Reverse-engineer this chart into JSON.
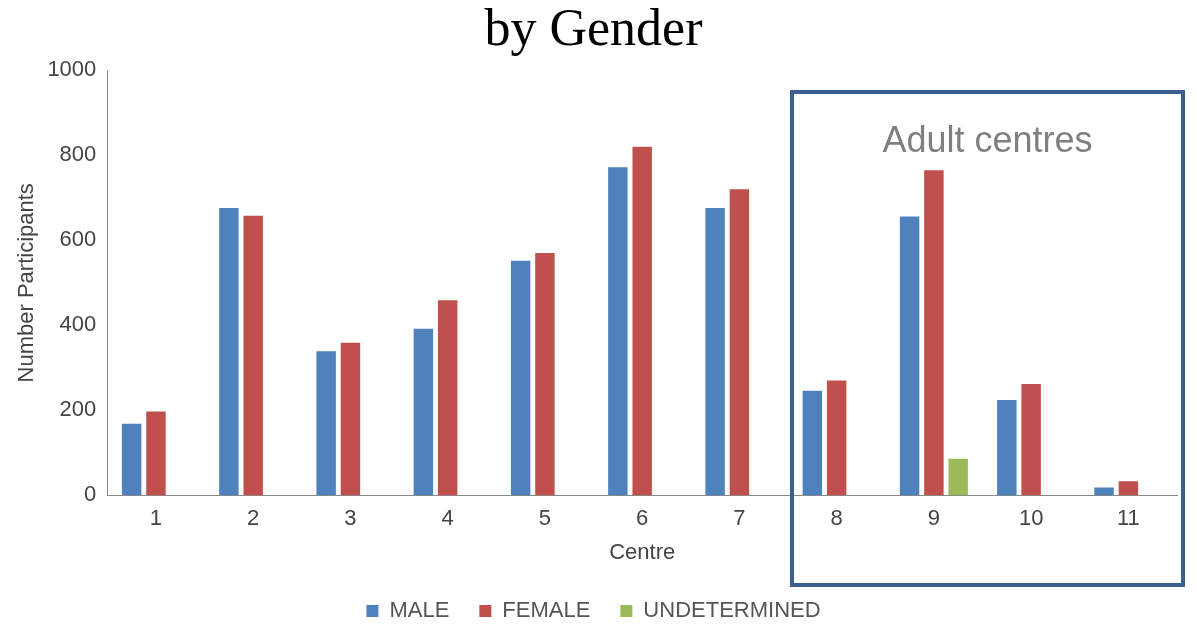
{
  "chart_data": {
    "type": "bar",
    "title": "by Gender",
    "xlabel": "Centre",
    "ylabel": "Number Participants",
    "categories": [
      "1",
      "2",
      "3",
      "4",
      "5",
      "6",
      "7",
      "8",
      "9",
      "10",
      "11"
    ],
    "series": [
      {
        "name": "MALE",
        "color": "#4f81bd",
        "values": [
          168,
          676,
          339,
          392,
          552,
          772,
          676,
          246,
          656,
          224,
          18
        ]
      },
      {
        "name": "FEMALE",
        "color": "#c0504d",
        "values": [
          197,
          658,
          359,
          459,
          570,
          820,
          720,
          270,
          765,
          262,
          33
        ]
      },
      {
        "name": "UNDETERMINED",
        "color": "#9bbb59",
        "values": [
          null,
          null,
          null,
          null,
          null,
          null,
          null,
          null,
          86,
          null,
          null
        ]
      }
    ],
    "ylim": [
      0,
      1000
    ],
    "yticks": [
      0,
      200,
      400,
      600,
      800,
      1000
    ],
    "grid": false,
    "legend": "bottom",
    "annotations": [
      "Adult centres"
    ]
  }
}
